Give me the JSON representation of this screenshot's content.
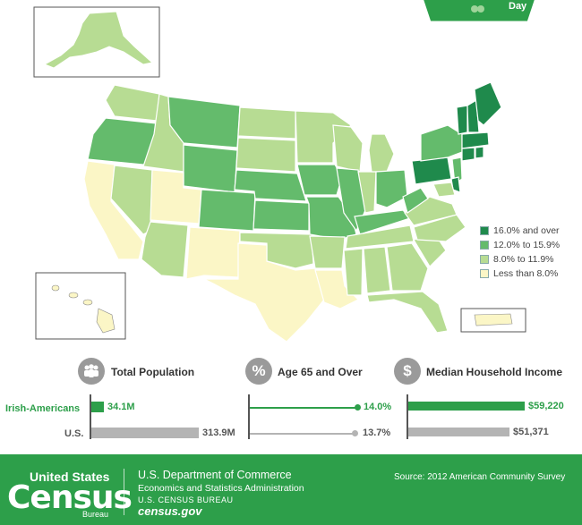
{
  "colors": {
    "c16": "#1f8a4c",
    "c12": "#64bb6c",
    "c8": "#b7dc93",
    "clow": "#fbf6c6",
    "accent": "#2d9f4a",
    "gray": "#b4b4b4",
    "badge_dark": "#1f8a4c"
  },
  "legend": {
    "items": [
      {
        "label": "16.0% and over",
        "color": "#1f8a4c"
      },
      {
        "label": "12.0% to 15.9%",
        "color": "#64bb6c"
      },
      {
        "label": "8.0% to 11.9%",
        "color": "#b7dc93"
      },
      {
        "label": "Less than 8.0%",
        "color": "#fbf6c6"
      }
    ]
  },
  "badge": {
    "text": "Day"
  },
  "stats": {
    "total_population": {
      "title": "Total Population",
      "icon": "people-icon"
    },
    "age_65": {
      "title": "Age 65 and Over",
      "icon": "percent-icon",
      "symbol": "%"
    },
    "income": {
      "title": "Median Household Income",
      "icon": "dollar-icon",
      "symbol": "$"
    },
    "rows": {
      "irish": "Irish-Americans",
      "us": "U.S."
    },
    "values": {
      "irish_pop": "34.1M",
      "us_pop": "313.9M",
      "irish_age": "14.0%",
      "us_age": "13.7%",
      "irish_income": "$59,220",
      "us_income": "$51,371"
    }
  },
  "chart_data": {
    "type": "bar",
    "categories": [
      "Irish-Americans",
      "U.S."
    ],
    "series": [
      {
        "name": "Total Population",
        "values": [
          34.1,
          313.9
        ]
      },
      {
        "name": "Age 65 and Over",
        "values": [
          14.0,
          13.7
        ]
      },
      {
        "name": "Median Household Income",
        "values": [
          59220,
          51371
        ]
      }
    ]
  },
  "footer": {
    "logo_top": "United States",
    "logo_main": "Census",
    "logo_sub": "Bureau",
    "dept": "U.S. Department of Commerce",
    "esa": "Economics and Statistics Administration",
    "bureau": "U.S. CENSUS BUREAU",
    "web": "census.gov",
    "source": "Source: 2012 American Community Survey"
  }
}
